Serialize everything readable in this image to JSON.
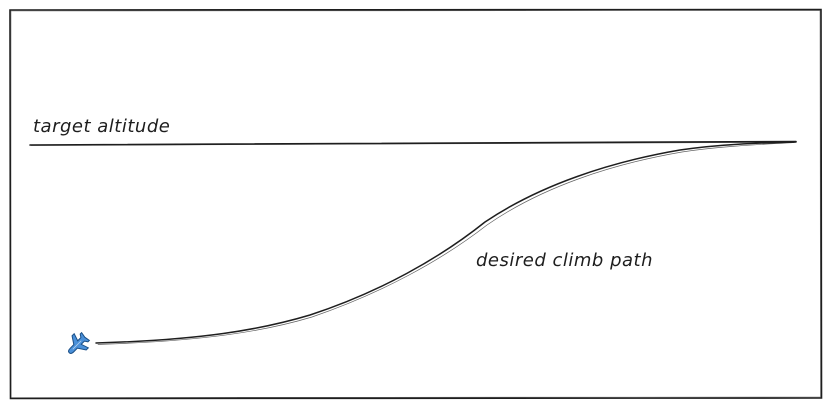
{
  "diagram": {
    "labels": {
      "target_altitude": "target altitude",
      "climb_path": "desired climb path"
    },
    "icons": {
      "aircraft": "airplane-icon"
    },
    "colors": {
      "stroke": "#1e1e1e",
      "frame": "#1e1e1e",
      "airplane_fill": "#4a90d9",
      "background": "#ffffff"
    }
  }
}
